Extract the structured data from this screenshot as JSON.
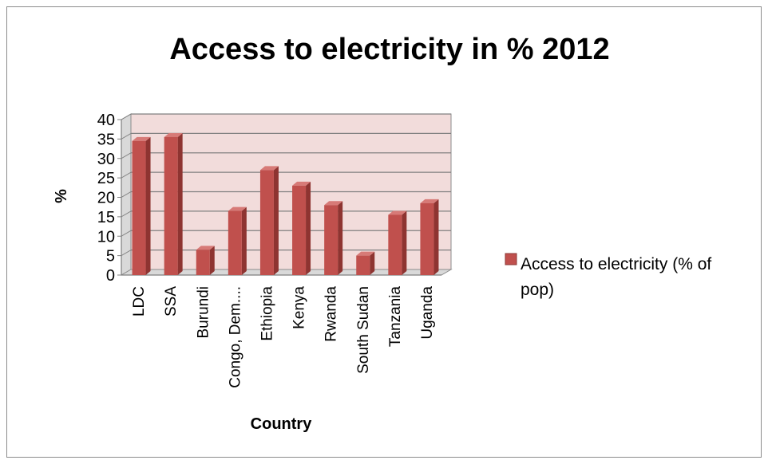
{
  "chart_data": {
    "type": "bar",
    "title": "Access to electricity in % 2012",
    "xlabel": "Country",
    "ylabel": "%",
    "ylim": [
      0,
      40
    ],
    "yticks": [
      "0",
      "5",
      "10",
      "15",
      "20",
      "25",
      "30",
      "35",
      "40"
    ],
    "categories": [
      "LDC",
      "SSA",
      "Burundi",
      "Congo, Dem....",
      "Ethiopia",
      "Kenya",
      "Rwanda",
      "South Sudan",
      "Tanzania",
      "Uganda"
    ],
    "series": [
      {
        "name": "Access to electricity (% of pop)",
        "legend_lines": [
          "Access to electricity (% of",
          "pop)"
        ],
        "values": [
          34.5,
          35.5,
          6.5,
          16.5,
          27,
          23,
          18,
          5,
          15.5,
          18.5
        ],
        "color": "#c0504d"
      }
    ],
    "grid": true,
    "legend_position": "right",
    "plot_background": "#f2dcdb"
  }
}
